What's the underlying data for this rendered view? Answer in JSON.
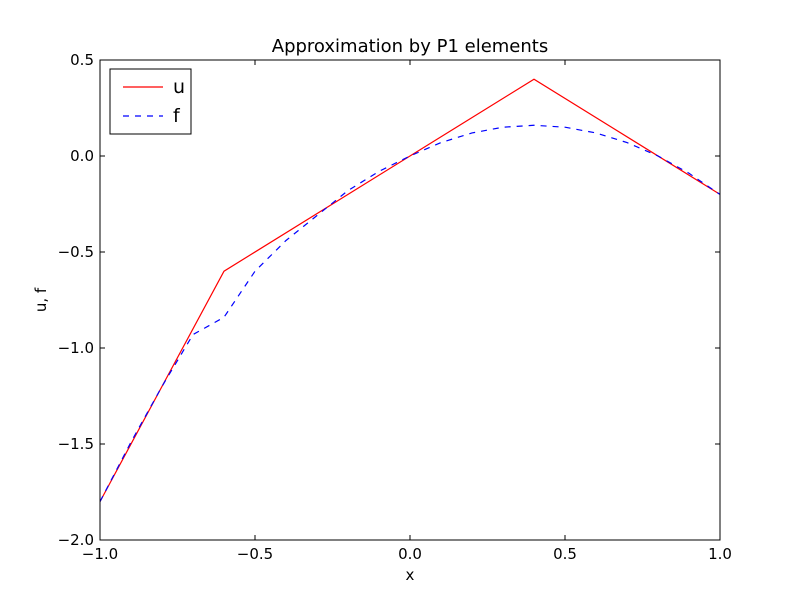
{
  "chart_data": {
    "type": "line",
    "title": "Approximation by P1 elements",
    "xlabel": "x",
    "ylabel": "u, f",
    "xlim": [
      -1.0,
      1.0
    ],
    "ylim": [
      -2.0,
      0.5
    ],
    "xticks": [
      -1.0,
      -0.5,
      0.0,
      0.5,
      1.0
    ],
    "xtick_labels": [
      "−1.0",
      "−0.5",
      "0.0",
      "0.5",
      "1.0"
    ],
    "yticks": [
      -2.0,
      -1.5,
      -1.0,
      -0.5,
      0.0,
      0.5
    ],
    "ytick_labels": [
      "−2.0",
      "−1.5",
      "−1.0",
      "−0.5",
      "0.0",
      "0.5"
    ],
    "grid": false,
    "legend_position": "top-left",
    "series": [
      {
        "name": "u",
        "style": "solid",
        "color": "#ff0000",
        "x": [
          -1.0,
          -0.6,
          0.4,
          1.0
        ],
        "y": [
          -1.8,
          -0.6,
          0.4,
          -0.2
        ]
      },
      {
        "name": "f",
        "style": "dashed",
        "color": "#0000ff",
        "x": [
          -1.0,
          -0.9,
          -0.8,
          -0.7,
          -0.6,
          -0.5,
          -0.4,
          -0.3,
          -0.2,
          -0.1,
          0.0,
          0.1,
          0.2,
          0.3,
          0.4,
          0.5,
          0.6,
          0.7,
          0.8,
          0.9,
          1.0
        ],
        "y": [
          -1.8,
          -1.49,
          -1.2,
          -0.93,
          -0.84,
          -0.6,
          -0.44,
          -0.31,
          -0.18,
          -0.08,
          0.0,
          0.07,
          0.12,
          0.15,
          0.16,
          0.15,
          0.12,
          0.07,
          0.0,
          -0.09,
          -0.2
        ]
      }
    ]
  }
}
